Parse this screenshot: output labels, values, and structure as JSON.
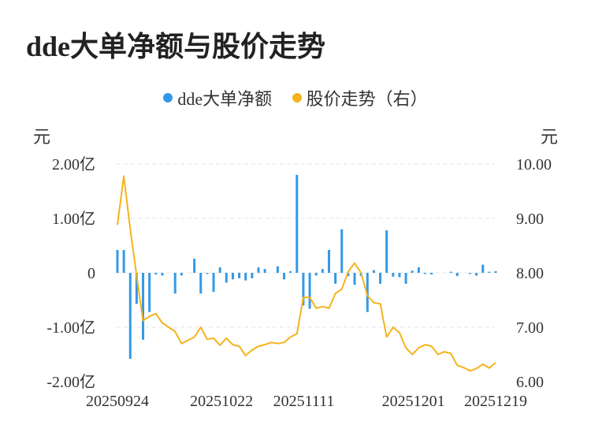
{
  "title": "dde大单净额与股价走势",
  "legend": [
    {
      "label": "dde大单净额",
      "color": "#3399e6"
    },
    {
      "label": "股价走势（右）",
      "color": "#f5b31b"
    }
  ],
  "units": {
    "left": "元",
    "right": "元"
  },
  "chart_data": {
    "type": "bar+line",
    "title": "dde大单净额与股价走势",
    "x_tick_labels": [
      "20250924",
      "20251022",
      "20251111",
      "20251201",
      "20251219"
    ],
    "x_tick_indices": [
      0,
      19,
      34,
      54,
      69
    ],
    "left_axis": {
      "ticks": [
        "2.00亿",
        "1.00亿",
        "0",
        "-1.00亿",
        "-2.00亿"
      ],
      "tick_values": [
        2.0,
        1.0,
        0,
        -1.0,
        -2.0
      ],
      "ylim": [
        -2.0,
        2.0
      ],
      "unit": "亿元"
    },
    "right_axis": {
      "ticks": [
        "10.00",
        "9.00",
        "8.00",
        "7.00",
        "6.00"
      ],
      "tick_values": [
        10,
        9,
        8,
        7,
        6
      ],
      "ylim": [
        6.0,
        10.0
      ]
    },
    "grid": true,
    "series": [
      {
        "name": "dde大单净额",
        "kind": "bar",
        "axis": "left",
        "color": "#3399e6",
        "values": [
          0.42,
          0.42,
          -1.58,
          -0.57,
          -1.23,
          -0.72,
          -0.03,
          -0.05,
          0.0,
          -0.38,
          -0.05,
          0.0,
          0.26,
          -0.38,
          -0.02,
          -0.35,
          0.1,
          -0.18,
          -0.12,
          -0.1,
          -0.14,
          -0.1,
          0.1,
          0.07,
          0.0,
          0.12,
          -0.12,
          0.03,
          1.8,
          -0.6,
          -0.66,
          -0.05,
          0.07,
          0.42,
          -0.2,
          0.8,
          -0.06,
          -0.22,
          -0.06,
          -0.72,
          0.05,
          -0.2,
          0.78,
          -0.07,
          -0.08,
          -0.2,
          0.04,
          0.1,
          -0.02,
          -0.03,
          0.0,
          0.0,
          0.02,
          -0.06,
          0.0,
          -0.02,
          -0.05,
          0.15,
          0.02,
          0.03
        ]
      },
      {
        "name": "股价走势（右）",
        "kind": "line",
        "axis": "right",
        "color": "#f5b31b",
        "values": [
          8.88,
          9.78,
          8.8,
          7.95,
          7.12,
          7.2,
          7.25,
          7.08,
          7.0,
          6.92,
          6.7,
          6.76,
          6.82,
          7.0,
          6.78,
          6.8,
          6.67,
          6.8,
          6.68,
          6.65,
          6.48,
          6.58,
          6.65,
          6.68,
          6.72,
          6.7,
          6.72,
          6.82,
          6.88,
          7.55,
          7.55,
          7.35,
          7.38,
          7.35,
          7.62,
          7.7,
          8.02,
          8.18,
          8.0,
          7.58,
          7.45,
          7.43,
          6.82,
          7.0,
          6.9,
          6.62,
          6.5,
          6.62,
          6.68,
          6.65,
          6.5,
          6.55,
          6.52,
          6.3,
          6.26,
          6.2,
          6.24,
          6.32,
          6.25,
          6.35
        ]
      }
    ]
  }
}
